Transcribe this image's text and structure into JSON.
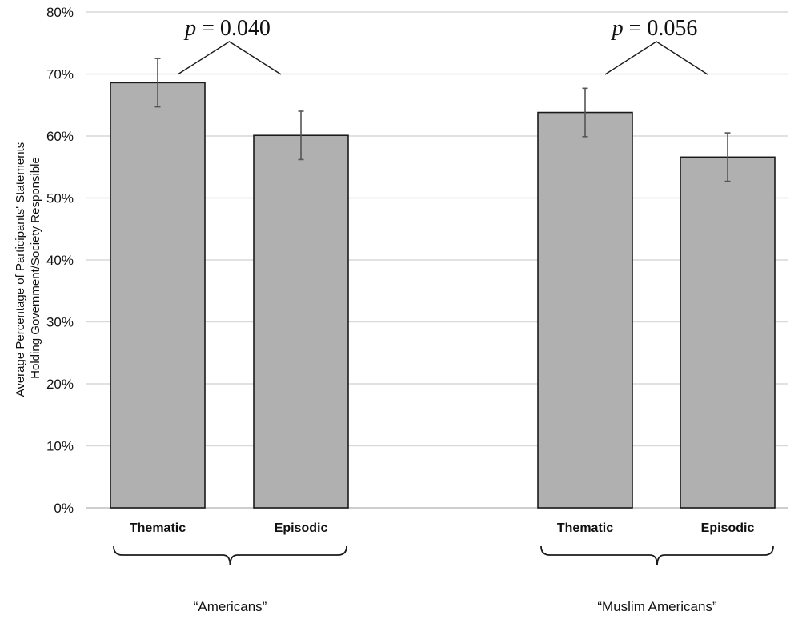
{
  "chart_data": {
    "type": "bar",
    "ylabel_lines": [
      "Average Percentage of Participants' Statements",
      "Holding Government/Society Responsible"
    ],
    "yticks": [
      "0%",
      "10%",
      "20%",
      "30%",
      "40%",
      "50%",
      "60%",
      "70%",
      "80%"
    ],
    "ylim": [
      0,
      80
    ],
    "grid": true,
    "bar_color": "#b0b0b0",
    "groups": [
      {
        "label": "“Americans”",
        "p_prefix": "p",
        "p_rest": " = 0.040",
        "bars": [
          {
            "category": "Thematic",
            "value": 68.6,
            "error": 3.9
          },
          {
            "category": "Episodic",
            "value": 60.1,
            "error": 3.9
          }
        ]
      },
      {
        "label": "“Muslim Americans”",
        "p_prefix": "p",
        "p_rest": " = 0.056",
        "bars": [
          {
            "category": "Thematic",
            "value": 63.8,
            "error": 3.9
          },
          {
            "category": "Episodic",
            "value": 56.6,
            "error": 3.9
          }
        ]
      }
    ]
  }
}
